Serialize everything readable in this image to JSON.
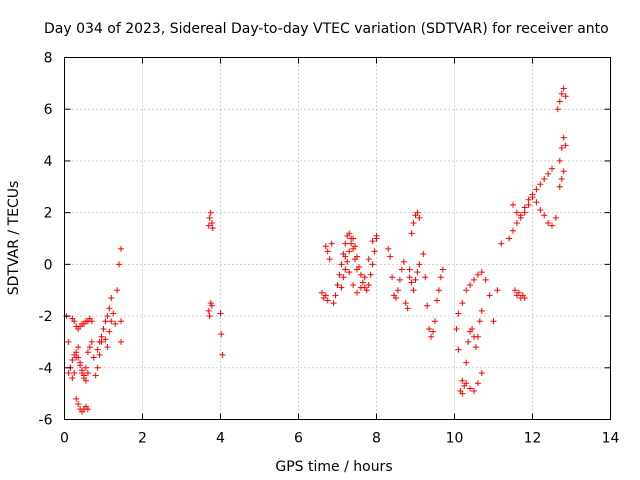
{
  "chart_data": {
    "type": "scatter",
    "title": "Day 034 of 2023, Sidereal Day-to-day VTEC variation (SDTVAR) for receiver anto",
    "xlabel": "GPS time / hours",
    "ylabel": "SDTVAR / TECUs",
    "xlim": [
      0,
      14
    ],
    "ylim": [
      -6,
      8
    ],
    "xticks": [
      "0",
      "2",
      "4",
      "6",
      "8",
      "10",
      "12",
      "14"
    ],
    "yticks": [
      "-6",
      "-4",
      "-2",
      "0",
      "2",
      "4",
      "6",
      "8"
    ],
    "grid": true,
    "marker": "+",
    "color": "#ff0000",
    "series": [
      {
        "name": "SDTVAR",
        "x": [
          0.05,
          0.1,
          0.15,
          0.2,
          0.25,
          0.3,
          0.35,
          0.4,
          0.45,
          0.5,
          0.55,
          0.6,
          0.65,
          0.7,
          0.1,
          0.15,
          0.2,
          0.25,
          0.3,
          0.35,
          0.4,
          0.45,
          0.5,
          0.55,
          0.6,
          0.2,
          0.25,
          0.3,
          0.35,
          0.4,
          0.45,
          0.5,
          0.55,
          0.6,
          0.65,
          0.7,
          0.3,
          0.35,
          0.4,
          0.45,
          0.5,
          0.55,
          0.6,
          0.75,
          0.8,
          0.85,
          0.9,
          0.95,
          1.0,
          1.05,
          1.1,
          1.15,
          1.2,
          0.85,
          0.9,
          0.95,
          1.0,
          1.05,
          1.1,
          1.15,
          1.2,
          1.25,
          1.3,
          1.35,
          1.4,
          1.45,
          1.45,
          1.45,
          3.7,
          3.72,
          3.75,
          3.78,
          3.8,
          3.75,
          3.7,
          3.72,
          3.78,
          4.0,
          4.02,
          4.05,
          6.6,
          6.65,
          6.7,
          6.75,
          6.8,
          6.85,
          6.7,
          6.75,
          6.9,
          6.95,
          7.0,
          7.05,
          7.1,
          7.15,
          7.2,
          7.25,
          7.3,
          7.35,
          7.4,
          7.45,
          7.5,
          7.1,
          7.15,
          7.2,
          7.25,
          7.3,
          7.35,
          7.4,
          7.45,
          7.5,
          7.55,
          7.6,
          7.65,
          7.7,
          7.75,
          7.8,
          7.85,
          7.9,
          7.95,
          8.0,
          7.2,
          7.3,
          7.4,
          7.5,
          7.6,
          7.7,
          7.8,
          7.9,
          8.0,
          8.3,
          8.35,
          8.4,
          8.45,
          8.5,
          8.55,
          8.6,
          8.65,
          8.7,
          8.75,
          8.8,
          8.85,
          8.9,
          8.95,
          9.0,
          9.05,
          9.1,
          8.85,
          8.9,
          8.95,
          9.0,
          9.05,
          9.1,
          9.2,
          9.25,
          9.3,
          9.35,
          9.4,
          9.45,
          9.5,
          9.55,
          9.6,
          9.65,
          9.7,
          10.05,
          10.1,
          10.15,
          10.2,
          10.25,
          10.3,
          10.35,
          10.4,
          10.45,
          10.5,
          10.55,
          10.6,
          10.65,
          10.7,
          10.1,
          10.2,
          10.3,
          10.4,
          10.5,
          10.6,
          10.7,
          10.8,
          10.9,
          11.0,
          11.1,
          11.2,
          10.2,
          10.3,
          10.4,
          10.5,
          10.6,
          10.7,
          11.4,
          11.5,
          11.6,
          11.7,
          11.8,
          11.9,
          12.0,
          12.1,
          12.2,
          12.3,
          12.4,
          12.5,
          11.5,
          11.6,
          11.7,
          11.8,
          11.9,
          12.0,
          12.1,
          12.2,
          12.3,
          12.4,
          12.5,
          12.6,
          11.55,
          11.6,
          11.65,
          11.7,
          11.75,
          11.8,
          12.65,
          12.7,
          12.75,
          12.8,
          12.85,
          12.7,
          12.75,
          12.8,
          12.85,
          12.7,
          12.75,
          12.8
        ],
        "y": [
          -2.0,
          -3.0,
          -4.0,
          -4.4,
          -4.2,
          -3.6,
          -3.2,
          -3.8,
          -4.2,
          -4.4,
          -4.0,
          -3.4,
          -3.2,
          -3.0,
          -4.2,
          -4.0,
          -3.7,
          -3.5,
          -3.4,
          -3.6,
          -3.9,
          -4.1,
          -4.3,
          -4.5,
          -4.2,
          -2.1,
          -2.2,
          -2.4,
          -2.5,
          -2.4,
          -2.3,
          -2.3,
          -2.2,
          -2.2,
          -2.1,
          -2.2,
          -5.2,
          -5.4,
          -5.6,
          -5.7,
          -5.6,
          -5.5,
          -5.6,
          -3.6,
          -4.3,
          -4.0,
          -3.5,
          -3.0,
          -2.5,
          -2.2,
          -2.0,
          -1.7,
          -1.3,
          -3.3,
          -3.0,
          -2.8,
          -2.5,
          -2.9,
          -3.2,
          -2.6,
          -2.2,
          -1.9,
          -2.3,
          -1.0,
          0.0,
          0.6,
          -3.0,
          -2.2,
          1.5,
          1.8,
          2.0,
          1.6,
          1.4,
          -1.5,
          -1.8,
          -2.0,
          -1.6,
          -1.9,
          -2.7,
          -3.5,
          -1.1,
          -1.3,
          0.7,
          0.5,
          0.2,
          0.8,
          -1.2,
          -1.4,
          -1.5,
          -1.2,
          -0.8,
          -0.4,
          0.0,
          0.4,
          0.8,
          1.1,
          1.2,
          1.0,
          0.6,
          0.2,
          -0.2,
          -0.9,
          -0.5,
          -0.2,
          0.1,
          0.5,
          0.8,
          1.0,
          0.7,
          0.3,
          -0.1,
          -0.4,
          -0.7,
          -0.9,
          -1.0,
          -0.8,
          -0.4,
          0.0,
          0.5,
          1.0,
          0.3,
          -0.3,
          -0.8,
          -1.1,
          -0.9,
          -0.5,
          0.2,
          0.9,
          1.1,
          0.6,
          0.3,
          -0.5,
          -1.2,
          -1.3,
          -1.0,
          -0.6,
          -0.2,
          0.1,
          -1.5,
          -1.7,
          -0.5,
          1.2,
          1.6,
          1.9,
          2.0,
          1.8,
          -0.2,
          -0.7,
          -1.0,
          -0.6,
          -0.3,
          0.0,
          0.4,
          -0.5,
          -1.6,
          -2.5,
          -2.8,
          -2.6,
          -2.2,
          -1.4,
          -1.0,
          -0.5,
          -0.2,
          -2.5,
          -3.3,
          -4.9,
          -5.0,
          -4.7,
          -3.8,
          -3.0,
          -2.6,
          -2.5,
          -2.8,
          -3.2,
          -2.8,
          -2.2,
          -1.8,
          -1.9,
          -1.5,
          -1.0,
          -0.8,
          -0.6,
          -0.4,
          -0.3,
          -0.6,
          -1.2,
          -2.2,
          -1.0,
          0.8,
          -4.5,
          -4.6,
          -4.8,
          -4.9,
          -4.6,
          -4.2,
          1.0,
          1.3,
          1.6,
          1.9,
          2.2,
          2.5,
          2.7,
          2.9,
          3.1,
          3.3,
          3.5,
          3.7,
          2.3,
          2.0,
          1.8,
          2.0,
          2.3,
          2.6,
          2.4,
          2.1,
          1.9,
          1.6,
          1.5,
          1.8,
          -1.0,
          -1.2,
          -1.1,
          -1.3,
          -1.2,
          -1.3,
          6.0,
          6.3,
          6.6,
          6.8,
          6.5,
          4.0,
          4.5,
          4.9,
          4.6,
          3.0,
          3.3,
          3.6
        ]
      }
    ]
  }
}
